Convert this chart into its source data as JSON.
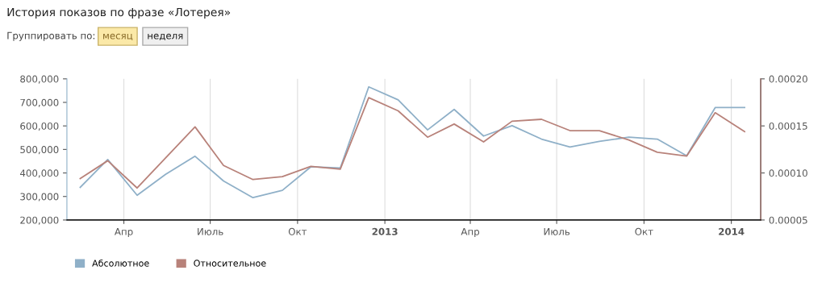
{
  "chart_data": {
    "type": "line",
    "title": "История показов по фразе «Лотерея»",
    "annotations": [
      "Группировать по:",
      "месяц",
      "неделя"
    ],
    "x": [
      "2012-02-15",
      "2012-03-15",
      "2012-04-15",
      "2012-05-15",
      "2012-06-15",
      "2012-07-15",
      "2012-08-15",
      "2012-09-15",
      "2012-10-15",
      "2012-11-15",
      "2012-12-15",
      "2013-01-15",
      "2013-02-15",
      "2013-03-15",
      "2013-04-15",
      "2013-05-15",
      "2013-06-15",
      "2013-07-15",
      "2013-08-15",
      "2013-09-15",
      "2013-10-15",
      "2013-11-15",
      "2013-12-15",
      "2014-01-15"
    ],
    "series": [
      {
        "name": "Абсолютное",
        "color": "#8fb0c8",
        "values": [
          339000,
          457000,
          305000,
          394000,
          471000,
          366000,
          295000,
          326000,
          426000,
          421000,
          766000,
          711000,
          583000,
          670000,
          557000,
          601000,
          544000,
          510000,
          534000,
          552000,
          544000,
          473000,
          678000,
          678000
        ]
      },
      {
        "name": "Относительное",
        "color": "#b8827a",
        "axis": "y2",
        "values": [
          9.4e-05,
          0.000113,
          8.4e-05,
          0.000116,
          0.000149,
          0.000108,
          9.3e-05,
          9.6e-05,
          0.000107,
          0.000104,
          0.00018,
          0.000166,
          0.000138,
          0.000152,
          0.000133,
          0.000155,
          0.000157,
          0.000145,
          0.000145,
          0.000135,
          0.000122,
          0.000118,
          0.000164,
          0.000144
        ]
      }
    ],
    "xlim": [
      "2012-02-01",
      "2014-02-01"
    ],
    "xticks": [
      {
        "value": "2012-04-01",
        "label": "Апр"
      },
      {
        "value": "2012-07-01",
        "label": "Июль"
      },
      {
        "value": "2012-10-01",
        "label": "Окт"
      },
      {
        "value": "2013-01-01",
        "label": "2013"
      },
      {
        "value": "2013-04-01",
        "label": "Апр"
      },
      {
        "value": "2013-07-01",
        "label": "Июль"
      },
      {
        "value": "2013-10-01",
        "label": "Окт"
      },
      {
        "value": "2014-01-01",
        "label": "2014"
      }
    ],
    "ylim": [
      200000,
      800000
    ],
    "yticks": [
      {
        "value": 200000,
        "label": "200,000"
      },
      {
        "value": 300000,
        "label": "300,000"
      },
      {
        "value": 400000,
        "label": "400,000"
      },
      {
        "value": 500000,
        "label": "500,000"
      },
      {
        "value": 600000,
        "label": "600,000"
      },
      {
        "value": 700000,
        "label": "700,000"
      },
      {
        "value": 800000,
        "label": "800,000"
      }
    ],
    "y2lim": [
      5e-05,
      0.0002
    ],
    "y2ticks": [
      {
        "value": 5e-05,
        "label": "0.00005"
      },
      {
        "value": 0.0001,
        "label": "0.00010"
      },
      {
        "value": 0.00015,
        "label": "0.00015"
      },
      {
        "value": 0.0002,
        "label": "0.00020"
      }
    ],
    "grid": "x",
    "legend": "bottom left",
    "marker": "none",
    "line_style": "solid"
  }
}
